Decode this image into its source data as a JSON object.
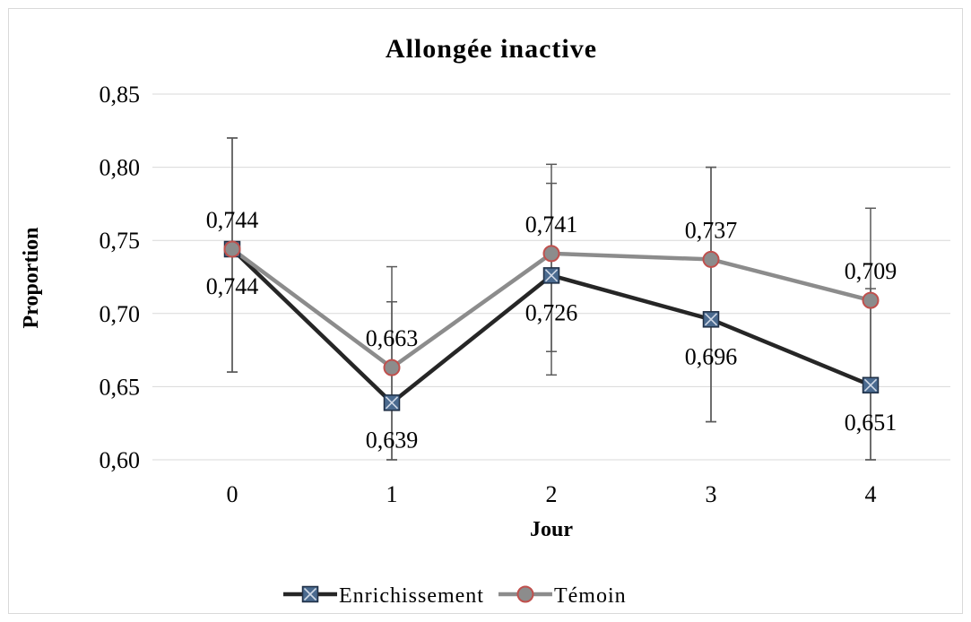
{
  "chart_data": {
    "type": "line",
    "title": "Allongée inactive",
    "xlabel": "Jour",
    "ylabel": "Proportion",
    "x": [
      0,
      1,
      2,
      3,
      4
    ],
    "x_tick_labels": [
      "0",
      "1",
      "2",
      "3",
      "4"
    ],
    "ylim": [
      0.6,
      0.85
    ],
    "y_ticks": [
      0.6,
      0.65,
      0.7,
      0.75,
      0.8,
      0.85
    ],
    "y_tick_labels": [
      "0,60",
      "0,65",
      "0,70",
      "0,75",
      "0,80",
      "0,85"
    ],
    "grid": true,
    "legend_position": "bottom",
    "series": [
      {
        "name": "Enrichissement",
        "color": "#262626",
        "marker": "square-x",
        "marker_fill": "#4a6a8f",
        "values": [
          0.744,
          0.639,
          0.726,
          0.696,
          0.651
        ],
        "value_labels": [
          "0,744",
          "0,639",
          "0,726",
          "0,696",
          "0,651"
        ],
        "error_low": [
          0.66,
          0.6,
          0.674,
          0.626,
          0.6
        ],
        "error_high": [
          0.82,
          0.708,
          0.789,
          0.8,
          0.717
        ]
      },
      {
        "name": "Témoin",
        "color": "#8c8c8c",
        "marker": "circle",
        "marker_fill": "#8c8c8c",
        "marker_edge": "#c0504d",
        "values": [
          0.744,
          0.663,
          0.741,
          0.737,
          0.709
        ],
        "value_labels": [
          "0,744",
          "0,663",
          "0,741",
          "0,737",
          "0,709"
        ],
        "error_low": [
          0.66,
          0.6,
          0.658,
          0.626,
          0.6
        ],
        "error_high": [
          0.82,
          0.732,
          0.802,
          0.8,
          0.772
        ]
      }
    ]
  }
}
